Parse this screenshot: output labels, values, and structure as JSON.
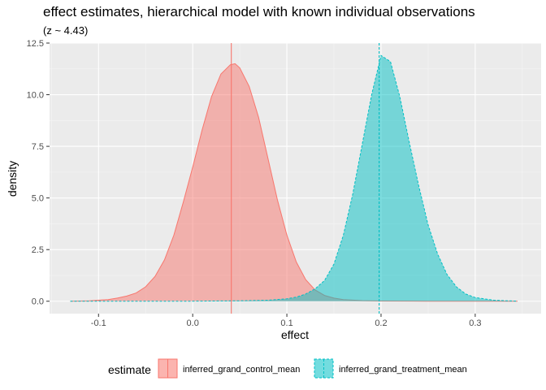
{
  "chart_data": {
    "type": "area",
    "title": "effect estimates, hierarchical model with known individual observations",
    "subtitle": "(z ~  4.43)",
    "xlabel": "effect",
    "ylabel": "density",
    "xlim": [
      -0.152,
      0.37
    ],
    "ylim": [
      -0.6,
      12.5
    ],
    "x_ticks": [
      -0.1,
      0.0,
      0.1,
      0.2,
      0.3
    ],
    "x_tick_labels": [
      "-0.1",
      "0.0",
      "0.1",
      "0.2",
      "0.3"
    ],
    "y_ticks": [
      0.0,
      2.5,
      5.0,
      7.5,
      10.0,
      12.5
    ],
    "y_tick_labels": [
      "0.0",
      "2.5",
      "5.0",
      "7.5",
      "10.0",
      "12.5"
    ],
    "grid": true,
    "legend": {
      "title": "estimate",
      "position": "bottom"
    },
    "series": [
      {
        "name": "inferred_grand_control_mean",
        "color": "#F8766D",
        "linestyle": "solid",
        "mean_line": 0.041,
        "x": [
          -0.13,
          -0.11,
          -0.09,
          -0.08,
          -0.07,
          -0.06,
          -0.05,
          -0.04,
          -0.03,
          -0.02,
          -0.01,
          0.0,
          0.01,
          0.02,
          0.03,
          0.04,
          0.045,
          0.05,
          0.06,
          0.07,
          0.08,
          0.09,
          0.1,
          0.11,
          0.12,
          0.13,
          0.14,
          0.15,
          0.16,
          0.18,
          0.2,
          0.25,
          0.3,
          0.345
        ],
        "y": [
          0.0,
          0.02,
          0.08,
          0.15,
          0.25,
          0.4,
          0.7,
          1.2,
          2.0,
          3.2,
          4.8,
          6.5,
          8.3,
          9.9,
          11.0,
          11.45,
          11.5,
          11.3,
          10.4,
          8.9,
          6.9,
          4.9,
          3.2,
          1.9,
          1.05,
          0.55,
          0.28,
          0.15,
          0.08,
          0.03,
          0.01,
          0.0,
          0.0,
          0.0
        ]
      },
      {
        "name": "inferred_grand_treatment_mean",
        "color": "#00BFC4",
        "linestyle": "dashed",
        "mean_line": 0.198,
        "x": [
          -0.13,
          0.0,
          0.05,
          0.08,
          0.1,
          0.11,
          0.12,
          0.13,
          0.14,
          0.15,
          0.16,
          0.17,
          0.18,
          0.19,
          0.2,
          0.21,
          0.22,
          0.23,
          0.24,
          0.25,
          0.26,
          0.27,
          0.28,
          0.29,
          0.3,
          0.32,
          0.345
        ],
        "y": [
          0.0,
          0.0,
          0.02,
          0.05,
          0.12,
          0.2,
          0.35,
          0.6,
          1.0,
          1.8,
          3.2,
          5.2,
          7.6,
          10.0,
          11.9,
          11.6,
          9.9,
          7.7,
          5.6,
          3.7,
          2.3,
          1.3,
          0.7,
          0.35,
          0.18,
          0.05,
          0.0
        ]
      }
    ]
  }
}
